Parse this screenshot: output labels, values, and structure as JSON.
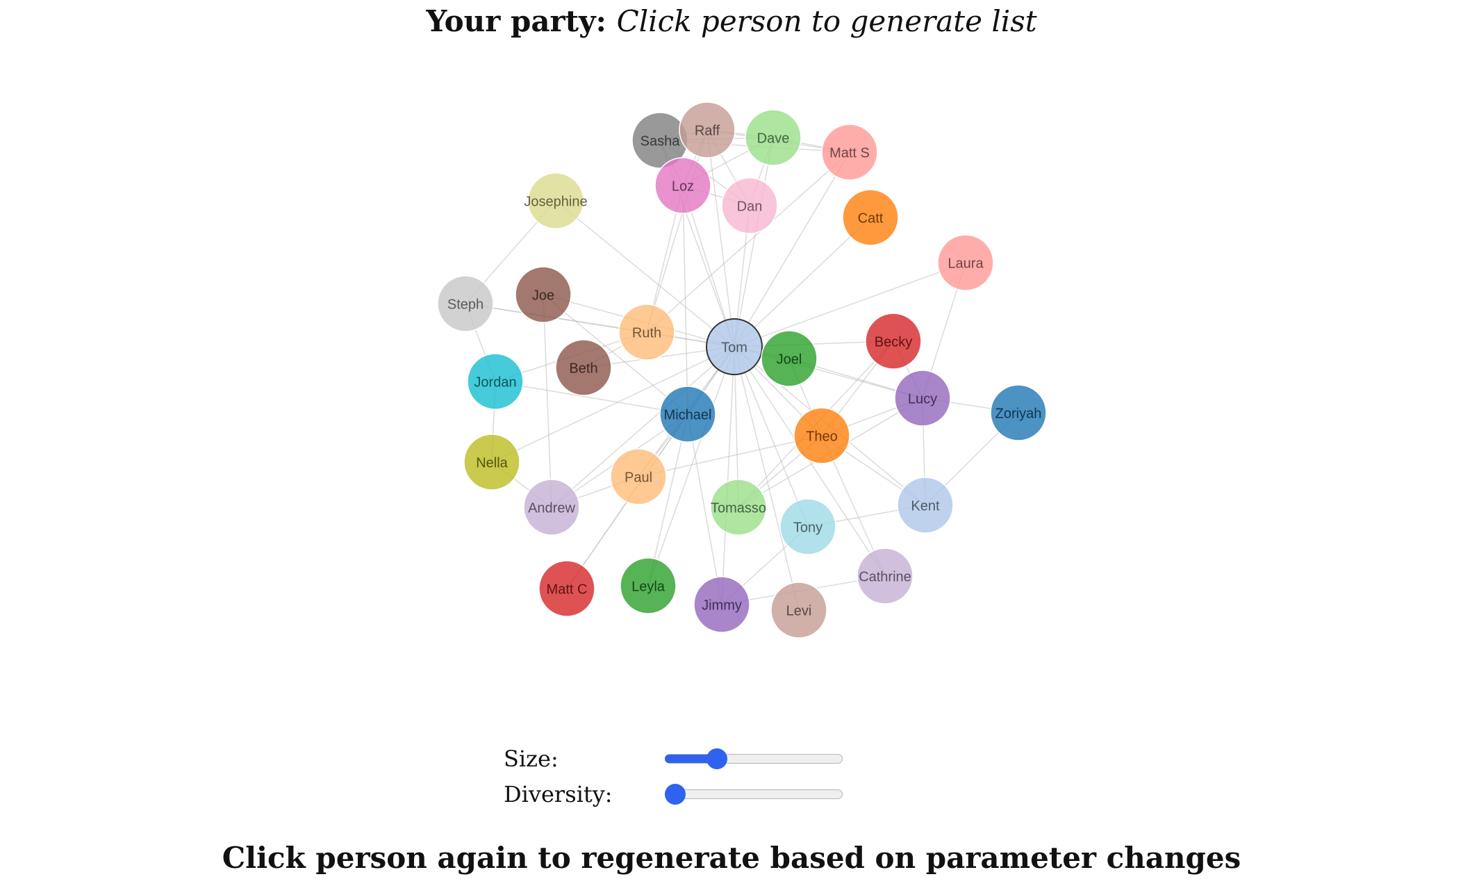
{
  "header": {
    "prefix": "Your party:",
    "hint": "Click person to generate list"
  },
  "graph": {
    "selected": "Tom",
    "nodes": [
      {
        "name": "Tom",
        "color": "#aec7e8"
      },
      {
        "name": "Sasha",
        "color": "#7f7f7f"
      },
      {
        "name": "Raff",
        "color": "#c49c94"
      },
      {
        "name": "Dave",
        "color": "#98df8a"
      },
      {
        "name": "Matt S",
        "color": "#ff9896"
      },
      {
        "name": "Loz",
        "color": "#e377c2"
      },
      {
        "name": "Dan",
        "color": "#f7b6d2"
      },
      {
        "name": "Josephine",
        "color": "#dbdb8d"
      },
      {
        "name": "Catt",
        "color": "#ff7f0e"
      },
      {
        "name": "Laura",
        "color": "#ff9896"
      },
      {
        "name": "Steph",
        "color": "#c7c7c7"
      },
      {
        "name": "Joe",
        "color": "#8c564b"
      },
      {
        "name": "Ruth",
        "color": "#ffbb78"
      },
      {
        "name": "Beth",
        "color": "#8c564b"
      },
      {
        "name": "Joel",
        "color": "#2ca02c"
      },
      {
        "name": "Becky",
        "color": "#d62728"
      },
      {
        "name": "Jordan",
        "color": "#17becf"
      },
      {
        "name": "Michael",
        "color": "#1f77b4"
      },
      {
        "name": "Lucy",
        "color": "#9467bd"
      },
      {
        "name": "Zoriyah",
        "color": "#1f77b4"
      },
      {
        "name": "Theo",
        "color": "#ff7f0e"
      },
      {
        "name": "Nella",
        "color": "#bcbd22"
      },
      {
        "name": "Paul",
        "color": "#ffbb78"
      },
      {
        "name": "Andrew",
        "color": "#c5b0d5"
      },
      {
        "name": "Tomasso",
        "color": "#98df8a"
      },
      {
        "name": "Tony",
        "color": "#9edae5"
      },
      {
        "name": "Kent",
        "color": "#aec7e8"
      },
      {
        "name": "Matt C",
        "color": "#d62728"
      },
      {
        "name": "Leyla",
        "color": "#2ca02c"
      },
      {
        "name": "Jimmy",
        "color": "#9467bd"
      },
      {
        "name": "Levi",
        "color": "#c49c94"
      },
      {
        "name": "Cathrine",
        "color": "#c5b0d5"
      }
    ],
    "links": [
      [
        "Tom",
        "Sasha"
      ],
      [
        "Tom",
        "Raff"
      ],
      [
        "Tom",
        "Dave"
      ],
      [
        "Tom",
        "Matt S"
      ],
      [
        "Tom",
        "Loz"
      ],
      [
        "Tom",
        "Dan"
      ],
      [
        "Tom",
        "Catt"
      ],
      [
        "Tom",
        "Laura"
      ],
      [
        "Tom",
        "Joe"
      ],
      [
        "Tom",
        "Ruth"
      ],
      [
        "Tom",
        "Beth"
      ],
      [
        "Tom",
        "Joel"
      ],
      [
        "Tom",
        "Becky"
      ],
      [
        "Tom",
        "Michael"
      ],
      [
        "Tom",
        "Lucy"
      ],
      [
        "Tom",
        "Theo"
      ],
      [
        "Tom",
        "Paul"
      ],
      [
        "Tom",
        "Andrew"
      ],
      [
        "Tom",
        "Tomasso"
      ],
      [
        "Tom",
        "Tony"
      ],
      [
        "Tom",
        "Kent"
      ],
      [
        "Tom",
        "Leyla"
      ],
      [
        "Tom",
        "Levi"
      ],
      [
        "Tom",
        "Cathrine"
      ],
      [
        "Tom",
        "Josephine"
      ],
      [
        "Tom",
        "Steph"
      ],
      [
        "Tom",
        "Jimmy"
      ],
      [
        "Tom",
        "Nella"
      ],
      [
        "Tom",
        "Matt C"
      ],
      [
        "Sasha",
        "Raff"
      ],
      [
        "Sasha",
        "Dave"
      ],
      [
        "Sasha",
        "Loz"
      ],
      [
        "Sasha",
        "Dan"
      ],
      [
        "Sasha",
        "Matt S"
      ],
      [
        "Raff",
        "Dave"
      ],
      [
        "Raff",
        "Matt S"
      ],
      [
        "Raff",
        "Loz"
      ],
      [
        "Raff",
        "Dan"
      ],
      [
        "Dave",
        "Loz"
      ],
      [
        "Dave",
        "Dan"
      ],
      [
        "Dave",
        "Matt S"
      ],
      [
        "Loz",
        "Dan"
      ],
      [
        "Loz",
        "Ruth"
      ],
      [
        "Raff",
        "Ruth"
      ],
      [
        "Matt S",
        "Ruth"
      ],
      [
        "Loz",
        "Michael"
      ],
      [
        "Josephine",
        "Steph"
      ],
      [
        "Steph",
        "Jordan"
      ],
      [
        "Steph",
        "Ruth"
      ],
      [
        "Jordan",
        "Nella"
      ],
      [
        "Jordan",
        "Ruth"
      ],
      [
        "Jordan",
        "Michael"
      ],
      [
        "Joe",
        "Andrew"
      ],
      [
        "Joe",
        "Michael"
      ],
      [
        "Beth",
        "Ruth"
      ],
      [
        "Michael",
        "Andrew"
      ],
      [
        "Michael",
        "Paul"
      ],
      [
        "Michael",
        "Leyla"
      ],
      [
        "Michael",
        "Matt C"
      ],
      [
        "Nella",
        "Andrew"
      ],
      [
        "Theo",
        "Becky"
      ],
      [
        "Theo",
        "Lucy"
      ],
      [
        "Theo",
        "Tomasso"
      ],
      [
        "Theo",
        "Joel"
      ],
      [
        "Theo",
        "Kent"
      ],
      [
        "Theo",
        "Cathrine"
      ],
      [
        "Theo",
        "Paul"
      ],
      [
        "Becky",
        "Lucy"
      ],
      [
        "Becky",
        "Tomasso"
      ],
      [
        "Lucy",
        "Laura"
      ],
      [
        "Lucy",
        "Zoriyah"
      ],
      [
        "Lucy",
        "Kent"
      ],
      [
        "Lucy",
        "Tomasso"
      ],
      [
        "Lucy",
        "Joel"
      ],
      [
        "Zoriyah",
        "Kent"
      ],
      [
        "Kent",
        "Tony"
      ],
      [
        "Jimmy",
        "Cathrine"
      ],
      [
        "Jimmy",
        "Tony"
      ],
      [
        "Paul",
        "Andrew"
      ],
      [
        "Michael",
        "Jimmy"
      ]
    ]
  },
  "controls": {
    "size": {
      "label": "Size:",
      "value": 0.27
    },
    "diversity": {
      "label": "Diversity:",
      "value": 0.0
    }
  },
  "footer": {
    "text": "Click person again to regenerate based on parameter changes"
  }
}
